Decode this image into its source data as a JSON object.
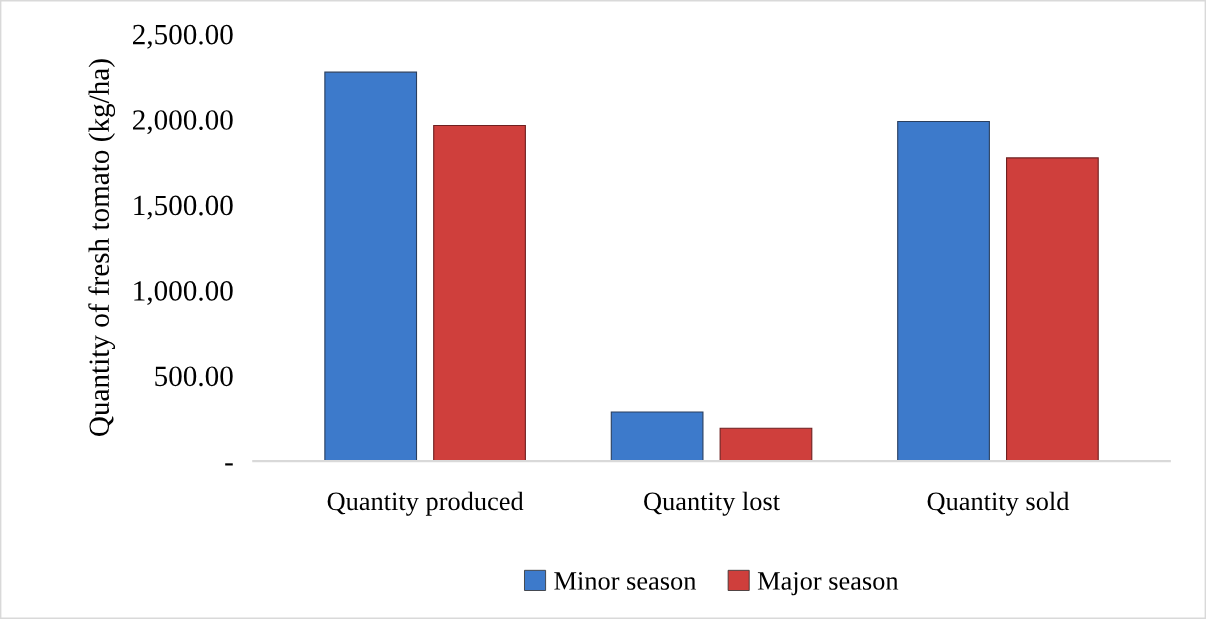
{
  "chart_data": {
    "type": "bar",
    "ylabel": "Quantity of fresh tomato (kg/ha)",
    "categories": [
      "Quantity produced",
      "Quantity lost",
      "Quantity sold"
    ],
    "series": [
      {
        "name": "Minor season",
        "color": "#3d7acb",
        "values": [
          2277,
          288,
          1988
        ]
      },
      {
        "name": "Major season",
        "color": "#cf3f3c",
        "values": [
          1965,
          193,
          1775
        ]
      }
    ],
    "ylim": [
      0,
      2500
    ],
    "yticks": [
      {
        "value": 0,
        "label": "-"
      },
      {
        "value": 500,
        "label": "500.00"
      },
      {
        "value": 1000,
        "label": "1,000.00"
      },
      {
        "value": 1500,
        "label": "1,500.00"
      },
      {
        "value": 2000,
        "label": "2,000.00"
      },
      {
        "value": 2500,
        "label": "2,500.00"
      }
    ],
    "grid": false,
    "legend": "bottom"
  }
}
